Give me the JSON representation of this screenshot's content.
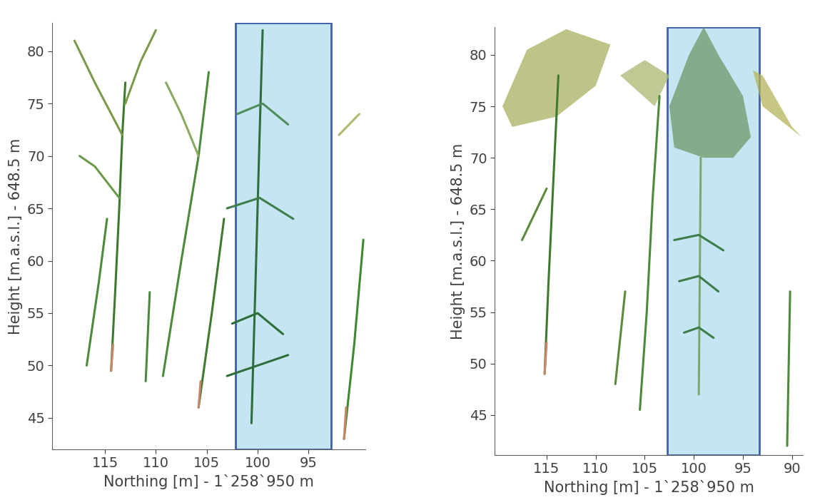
{
  "chart_data": [
    {
      "type": "line",
      "x_label": "Northing [m] - 1`258`950 m",
      "y_label": "Height [m.a.s.l.] - 648.5 m",
      "xlim": [
        120.2,
        89.4
      ],
      "ylim": [
        42.0,
        82.7
      ],
      "xticks": [
        115,
        110,
        105,
        100,
        95
      ],
      "yticks": [
        45,
        50,
        55,
        60,
        65,
        70,
        75,
        80
      ],
      "highlight_x": [
        102.2,
        92.8
      ],
      "series": [
        {
          "type": "line",
          "color": "#3d7a2e",
          "x": [
            114.4,
            114.0,
            113.6,
            113.3,
            113.0
          ],
          "y": [
            49.5,
            57,
            65,
            72,
            77
          ]
        },
        {
          "type": "line",
          "color": "#7a9a4a",
          "x": [
            113.3,
            116,
            118
          ],
          "y": [
            72,
            77,
            81
          ]
        },
        {
          "type": "line",
          "color": "#7a9a4a",
          "x": [
            113.0,
            111.5,
            110
          ],
          "y": [
            75,
            79,
            82
          ]
        },
        {
          "type": "line",
          "color": "#6a9a4a",
          "x": [
            113.6,
            116,
            117.5
          ],
          "y": [
            66,
            69,
            70
          ]
        },
        {
          "type": "line",
          "color": "#c8866a",
          "x": [
            114.4,
            114.2
          ],
          "y": [
            49.5,
            52
          ]
        },
        {
          "type": "line",
          "color": "#4a8a3a",
          "x": [
            116.8,
            115.6,
            114.8
          ],
          "y": [
            50,
            58,
            64
          ]
        },
        {
          "type": "line",
          "color": "#4a8a3a",
          "x": [
            111.0,
            110.6
          ],
          "y": [
            48.5,
            57
          ]
        },
        {
          "type": "line",
          "color": "#4a8a3a",
          "x": [
            109.3,
            107.5,
            105.8,
            104.8
          ],
          "y": [
            49,
            60,
            70,
            78
          ]
        },
        {
          "type": "line",
          "color": "#8aa860",
          "x": [
            105.8,
            107.5,
            109
          ],
          "y": [
            70,
            74,
            77
          ]
        },
        {
          "type": "line",
          "color": "#3d7a2e",
          "x": [
            105.8,
            104.5,
            103.3
          ],
          "y": [
            46,
            55,
            64
          ]
        },
        {
          "type": "line",
          "color": "#c8866a",
          "x": [
            105.8,
            105.6
          ],
          "y": [
            46,
            48.5
          ]
        },
        {
          "type": "line",
          "color": "#2f6e3a",
          "x": [
            100.6,
            100.2,
            99.8,
            99.5
          ],
          "y": [
            44.5,
            58,
            72,
            82
          ]
        },
        {
          "type": "line",
          "color": "#2f6e3a",
          "x": [
            103,
            100,
            97
          ],
          "y": [
            49,
            50,
            51
          ]
        },
        {
          "type": "line",
          "color": "#2f6e3a",
          "x": [
            102.5,
            100,
            97.5
          ],
          "y": [
            54,
            55,
            53
          ]
        },
        {
          "type": "line",
          "color": "#3f7e4a",
          "x": [
            103,
            99.8,
            96.5
          ],
          "y": [
            65,
            66,
            64
          ]
        },
        {
          "type": "line",
          "color": "#4f8e5a",
          "x": [
            102,
            99.5,
            97
          ],
          "y": [
            74,
            75,
            73
          ]
        },
        {
          "type": "line",
          "color": "#3d8a2e",
          "x": [
            91.5,
            90.5,
            89.6
          ],
          "y": [
            43,
            52,
            62
          ]
        },
        {
          "type": "line",
          "color": "#c8866a",
          "x": [
            91.5,
            91.3
          ],
          "y": [
            43,
            46
          ]
        },
        {
          "type": "line",
          "color": "#b0b870",
          "x": [
            92,
            90
          ],
          "y": [
            72,
            74
          ]
        }
      ]
    },
    {
      "type": "line",
      "x_label": "Northing [m] - 1`258`950 m",
      "y_label": "Height [m.a.s.l.] - 648.5 m",
      "xlim": [
        120.3,
        88.9
      ],
      "ylim": [
        41.1,
        82.7
      ],
      "xticks": [
        115,
        110,
        105,
        100,
        95,
        90
      ],
      "yticks": [
        45,
        50,
        55,
        60,
        65,
        70,
        75,
        80
      ],
      "highlight_x": [
        102.7,
        93.3
      ],
      "series": [
        {
          "type": "fill",
          "color": "#a8b060",
          "x": [
            119.5,
            117,
            113,
            108.5,
            110,
            114,
            118.5
          ],
          "y": [
            75,
            80.5,
            82.5,
            81,
            77,
            74,
            73
          ]
        },
        {
          "type": "line",
          "color": "#3d7a2e",
          "x": [
            115.2,
            114.8,
            114.3,
            113.8
          ],
          "y": [
            49,
            58,
            68,
            78
          ]
        },
        {
          "type": "line",
          "color": "#c8866a",
          "x": [
            115.2,
            115.0
          ],
          "y": [
            49,
            52
          ]
        },
        {
          "type": "line",
          "color": "#5a8a3a",
          "x": [
            117.5,
            115
          ],
          "y": [
            62,
            67
          ]
        },
        {
          "type": "line",
          "color": "#5a8a3a",
          "x": [
            108,
            107
          ],
          "y": [
            48,
            57
          ]
        },
        {
          "type": "fill",
          "color": "#a8b870",
          "x": [
            107.5,
            105,
            102.5,
            104
          ],
          "y": [
            78,
            79.5,
            78,
            75
          ]
        },
        {
          "type": "line",
          "color": "#4a8a3a",
          "x": [
            105.5,
            104.8,
            104.2,
            103.5
          ],
          "y": [
            45.5,
            55,
            66,
            76
          ]
        },
        {
          "type": "fill",
          "color": "#6e9a68",
          "x": [
            102.5,
            100.5,
            99,
            97.5,
            95,
            94.2,
            96,
            99,
            102
          ],
          "y": [
            75,
            80,
            82.7,
            80,
            76,
            72,
            70,
            70,
            71
          ]
        },
        {
          "type": "line",
          "color": "#7aa870",
          "x": [
            99.5,
            99.3
          ],
          "y": [
            47,
            70
          ]
        },
        {
          "type": "line",
          "color": "#3f7e4a",
          "x": [
            102,
            99.5,
            97
          ],
          "y": [
            62,
            62.5,
            61
          ]
        },
        {
          "type": "line",
          "color": "#3f7e4a",
          "x": [
            101.5,
            99.5,
            97.5
          ],
          "y": [
            58,
            58.5,
            57
          ]
        },
        {
          "type": "line",
          "color": "#3f7e4a",
          "x": [
            101,
            99.5,
            98
          ],
          "y": [
            53,
            53.5,
            52.5
          ]
        },
        {
          "type": "fill",
          "color": "#b5b45a",
          "x": [
            90,
            93,
            94,
            93,
            89
          ],
          "y": [
            73,
            78,
            78.5,
            75,
            72
          ]
        },
        {
          "type": "line",
          "color": "#4a8a3a",
          "x": [
            90.5,
            90.2
          ],
          "y": [
            42,
            57
          ]
        }
      ]
    }
  ]
}
